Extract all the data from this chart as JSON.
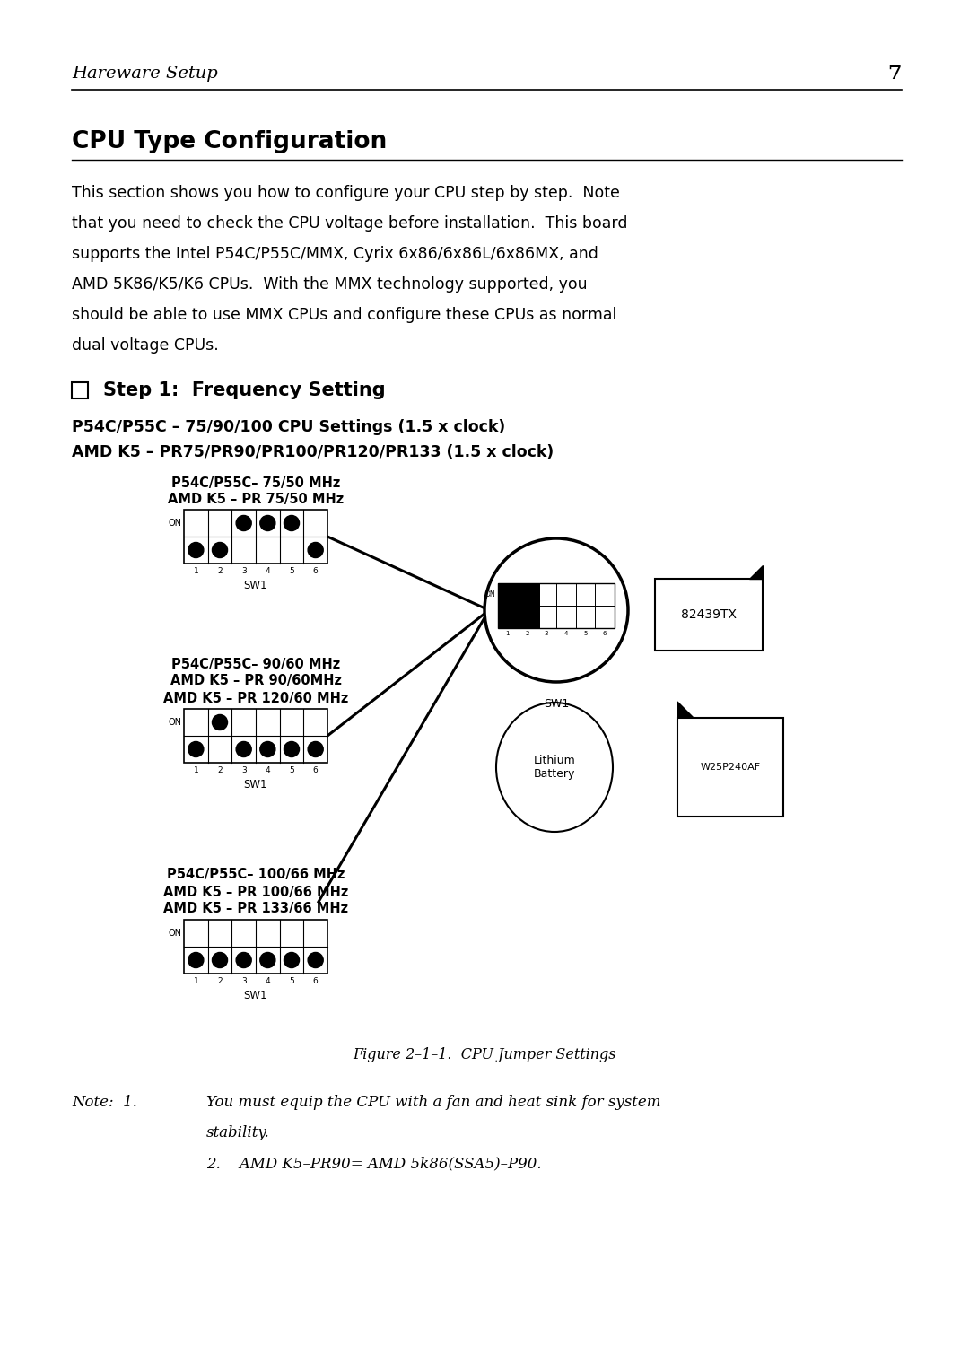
{
  "bg_color": "#ffffff",
  "header_italic": "Hareware Setup",
  "header_number": "7",
  "section_title": "CPU Type Configuration",
  "body_text_lines": [
    "This section shows you how to configure your CPU step by step.  Note",
    "that you need to check the CPU voltage before installation.  This board",
    "supports the Intel P54C/P55C/MMX, Cyrix 6x86/6x86L/6x86MX, and",
    "AMD 5K86/K5/K6 CPUs.  With the MMX technology supported, you",
    "should be able to use MMX CPUs and configure these CPUs as normal",
    "dual voltage CPUs."
  ],
  "bold_line1": "P54C/P55C – 75/90/100 CPU Settings (1.5 x clock)",
  "bold_line2": "AMD K5 – PR75/PR90/PR100/PR120/PR133 (1.5 x clock)",
  "sw_label1_line1": "P54C/P55C– 75/50 MHz",
  "sw_label1_line2": "AMD K5 – PR 75/50 MHz",
  "sw_label2_line1": "P54C/P55C– 90/60 MHz",
  "sw_label2_line2": "AMD K5 – PR 90/60MHz",
  "sw_label2_line3": "AMD K5 – PR 120/60 MHz",
  "sw_label3_line1": "P54C/P55C– 100/66 MHz",
  "sw_label3_line2": "AMD K5 – PR 100/66 MHz",
  "sw_label3_line3": "AMD K5 – PR 133/66 MHz",
  "chip_label": "82439TX",
  "battery_label": "Lithium\nBattery",
  "flash_label": "W25P240AF",
  "figure_caption": "Figure 2–1–1.  CPU Jumper Settings",
  "note_label": "Note:",
  "note_num1": "1.",
  "note_text1_line1": "You must equip the CPU with a fan and heat sink for system",
  "note_text1_line2": "stability.",
  "note_num2": "2.",
  "note_text2": "AMD K5–PR90= AMD 5k86(SSA5)–P90."
}
